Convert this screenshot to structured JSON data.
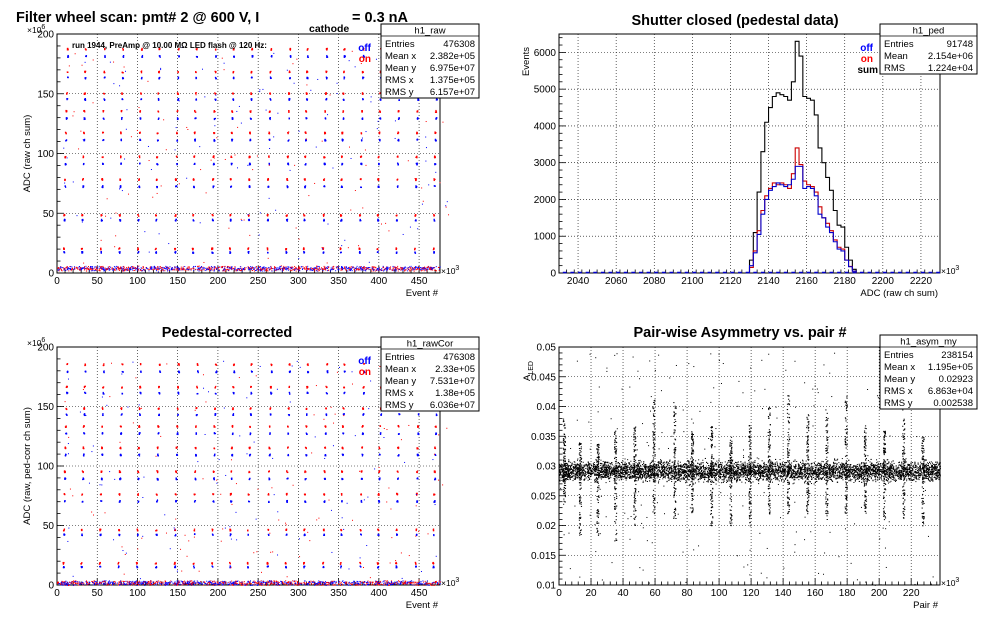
{
  "panels": {
    "raw": {
      "title": "Filter wheel scan: pmt#   2 @   600 V, I",
      "title_sub": "cathode",
      "title_tail": "= 0.3 nA",
      "ylabel": "ADC (raw ch sum)",
      "xlabel": "Event #",
      "yexp": "×10",
      "yexp_pow": "6",
      "xexp": "×10",
      "xexp_pow": "3",
      "annotation": "run 1944, PreAmp @ 10.00 MΩ LED flash @  120 Hz:",
      "legend": {
        "off": "off",
        "on": "on"
      },
      "stats": {
        "name": "h1_raw",
        "rows": [
          {
            "label": "Entries",
            "value": "476308"
          },
          {
            "label": "Mean x",
            "value": "2.382e+05"
          },
          {
            "label": "Mean y",
            "value": "6.975e+07"
          },
          {
            "label": "RMS x",
            "value": "1.375e+05"
          },
          {
            "label": "RMS y",
            "value": "6.157e+07"
          }
        ]
      }
    },
    "ped": {
      "title": "Shutter closed (pedestal data)",
      "ylabel": "Events",
      "xlabel": "ADC (raw ch sum)",
      "xexp": "×10",
      "xexp_pow": "3",
      "legend": {
        "off": "off",
        "on": "on",
        "sum": "sum"
      },
      "stats": {
        "name": "h1_ped",
        "rows": [
          {
            "label": "Entries",
            "value": "91748"
          },
          {
            "label": "Mean",
            "value": "2.154e+06"
          },
          {
            "label": "RMS",
            "value": "1.224e+04"
          }
        ]
      }
    },
    "cor": {
      "title": "Pedestal-corrected",
      "ylabel": "ADC (raw, ped-corr ch sum)",
      "xlabel": "Event #",
      "yexp": "×10",
      "yexp_pow": "6",
      "xexp": "×10",
      "xexp_pow": "3",
      "legend": {
        "off": "off",
        "on": "on"
      },
      "stats": {
        "name": "h1_rawCor",
        "rows": [
          {
            "label": "Entries",
            "value": "476308"
          },
          {
            "label": "Mean x",
            "value": "2.33e+05"
          },
          {
            "label": "Mean y",
            "value": "7.531e+07"
          },
          {
            "label": "RMS x",
            "value": "1.38e+05"
          },
          {
            "label": "RMS y",
            "value": "6.036e+07"
          }
        ]
      }
    },
    "asym": {
      "title": "Pair-wise Asymmetry vs. pair #",
      "ylabel": "A",
      "ylabel_sub": "LED",
      "xlabel": "Pair #",
      "xexp": "×10",
      "xexp_pow": "3",
      "stats": {
        "name": "h1_asym_my",
        "rows": [
          {
            "label": "Entries",
            "value": "238154"
          },
          {
            "label": "Mean x",
            "value": "1.195e+05"
          },
          {
            "label": "Mean y",
            "value": "0.02923"
          },
          {
            "label": "RMS x",
            "value": "6.863e+04"
          },
          {
            "label": "RMS y",
            "value": "0.002538"
          }
        ]
      }
    }
  },
  "chart_data": [
    {
      "type": "scatter",
      "id": "raw",
      "xlim": [
        0,
        476
      ],
      "ylim": [
        0,
        200
      ],
      "xticks": [
        "0",
        "50",
        "100",
        "150",
        "200",
        "250",
        "300",
        "350",
        "400",
        "450"
      ],
      "yticks": [
        "0",
        "50",
        "100",
        "150",
        "200"
      ],
      "grid": true,
      "levels_on": [
        3,
        20,
        48,
        78,
        97,
        117,
        135,
        150,
        168,
        187
      ],
      "levels_off": [
        2,
        17,
        44,
        72,
        91,
        111,
        129,
        145,
        163,
        181
      ],
      "series": [
        {
          "name": "off",
          "color": "#0000ff"
        },
        {
          "name": "on",
          "color": "#ff0000"
        }
      ]
    },
    {
      "type": "line",
      "id": "ped",
      "xlim": [
        2030,
        2230
      ],
      "ylim": [
        0,
        6500
      ],
      "xticks": [
        "2040",
        "2060",
        "2080",
        "2100",
        "2120",
        "2140",
        "2160",
        "2180",
        "2200",
        "2220"
      ],
      "yticks": [
        "0",
        "1000",
        "2000",
        "3000",
        "4000",
        "5000",
        "6000"
      ],
      "grid": true,
      "bin_width": 2,
      "bins_start": 2130,
      "series": [
        {
          "name": "sum",
          "color": "#000000",
          "values": [
            350,
            1100,
            2200,
            3300,
            4100,
            4500,
            4800,
            4900,
            4850,
            4800,
            4700,
            5200,
            6300,
            5900,
            4800,
            4750,
            4700,
            4300,
            3400,
            3000,
            2600,
            2250,
            1700,
            1300,
            1250,
            700,
            350,
            100
          ]
        },
        {
          "name": "on",
          "color": "#cc0000",
          "values": [
            150,
            600,
            1150,
            1700,
            2100,
            2300,
            2450,
            2400,
            2450,
            2400,
            2300,
            2700,
            3400,
            2950,
            2500,
            2400,
            2350,
            2200,
            1800,
            1500,
            1350,
            1150,
            900,
            700,
            650,
            350,
            180,
            50
          ]
        },
        {
          "name": "off",
          "color": "#0000cc",
          "values": [
            200,
            550,
            1050,
            1600,
            2000,
            2250,
            2350,
            2450,
            2400,
            2350,
            2400,
            2550,
            2900,
            2900,
            2300,
            2350,
            2300,
            2100,
            1600,
            1500,
            1250,
            1100,
            850,
            650,
            600,
            350,
            170,
            50
          ]
        }
      ]
    },
    {
      "type": "scatter",
      "id": "cor",
      "xlim": [
        0,
        476
      ],
      "ylim": [
        0,
        200
      ],
      "xticks": [
        "0",
        "50",
        "100",
        "150",
        "200",
        "250",
        "300",
        "350",
        "400",
        "450"
      ],
      "yticks": [
        "0",
        "50",
        "100",
        "150",
        "200"
      ],
      "grid": true,
      "levels_on": [
        1,
        18,
        46,
        76,
        95,
        115,
        133,
        148,
        166,
        185
      ],
      "levels_off": [
        0,
        15,
        42,
        70,
        89,
        109,
        127,
        143,
        161,
        179
      ],
      "series": [
        {
          "name": "off",
          "color": "#0000ff"
        },
        {
          "name": "on",
          "color": "#ff0000"
        }
      ]
    },
    {
      "type": "scatter",
      "id": "asym",
      "xlim": [
        0,
        238
      ],
      "ylim": [
        0.01,
        0.05
      ],
      "xticks": [
        "0",
        "20",
        "40",
        "60",
        "80",
        "100",
        "120",
        "140",
        "160",
        "180",
        "200",
        "220"
      ],
      "yticks": [
        "0.01",
        "0.015",
        "0.02",
        "0.025",
        "0.03",
        "0.035",
        "0.04",
        "0.045",
        "0.05"
      ],
      "grid": true,
      "band_center": 0.0292,
      "band_halfwidth": 0.0015,
      "spikes": [
        {
          "x": 3,
          "top": 0.038,
          "bottom": 0.024
        },
        {
          "x": 13,
          "top": 0.034,
          "bottom": 0.018
        },
        {
          "x": 24,
          "top": 0.034,
          "bottom": 0.018
        },
        {
          "x": 35,
          "top": 0.036,
          "bottom": 0.017
        },
        {
          "x": 47,
          "top": 0.037,
          "bottom": 0.02
        },
        {
          "x": 59,
          "top": 0.042,
          "bottom": 0.022
        },
        {
          "x": 72,
          "top": 0.041,
          "bottom": 0.021
        },
        {
          "x": 83,
          "top": 0.036,
          "bottom": 0.022
        },
        {
          "x": 95,
          "top": 0.037,
          "bottom": 0.02
        },
        {
          "x": 107,
          "top": 0.035,
          "bottom": 0.02
        },
        {
          "x": 119,
          "top": 0.037,
          "bottom": 0.02
        },
        {
          "x": 131,
          "top": 0.04,
          "bottom": 0.022
        },
        {
          "x": 143,
          "top": 0.042,
          "bottom": 0.022
        },
        {
          "x": 155,
          "top": 0.039,
          "bottom": 0.022
        },
        {
          "x": 167,
          "top": 0.04,
          "bottom": 0.021
        },
        {
          "x": 179,
          "top": 0.042,
          "bottom": 0.022
        },
        {
          "x": 191,
          "top": 0.037,
          "bottom": 0.022
        },
        {
          "x": 203,
          "top": 0.036,
          "bottom": 0.02
        },
        {
          "x": 215,
          "top": 0.038,
          "bottom": 0.021
        },
        {
          "x": 227,
          "top": 0.035,
          "bottom": 0.02
        }
      ],
      "series": [
        {
          "name": "",
          "color": "#000000"
        }
      ]
    }
  ]
}
